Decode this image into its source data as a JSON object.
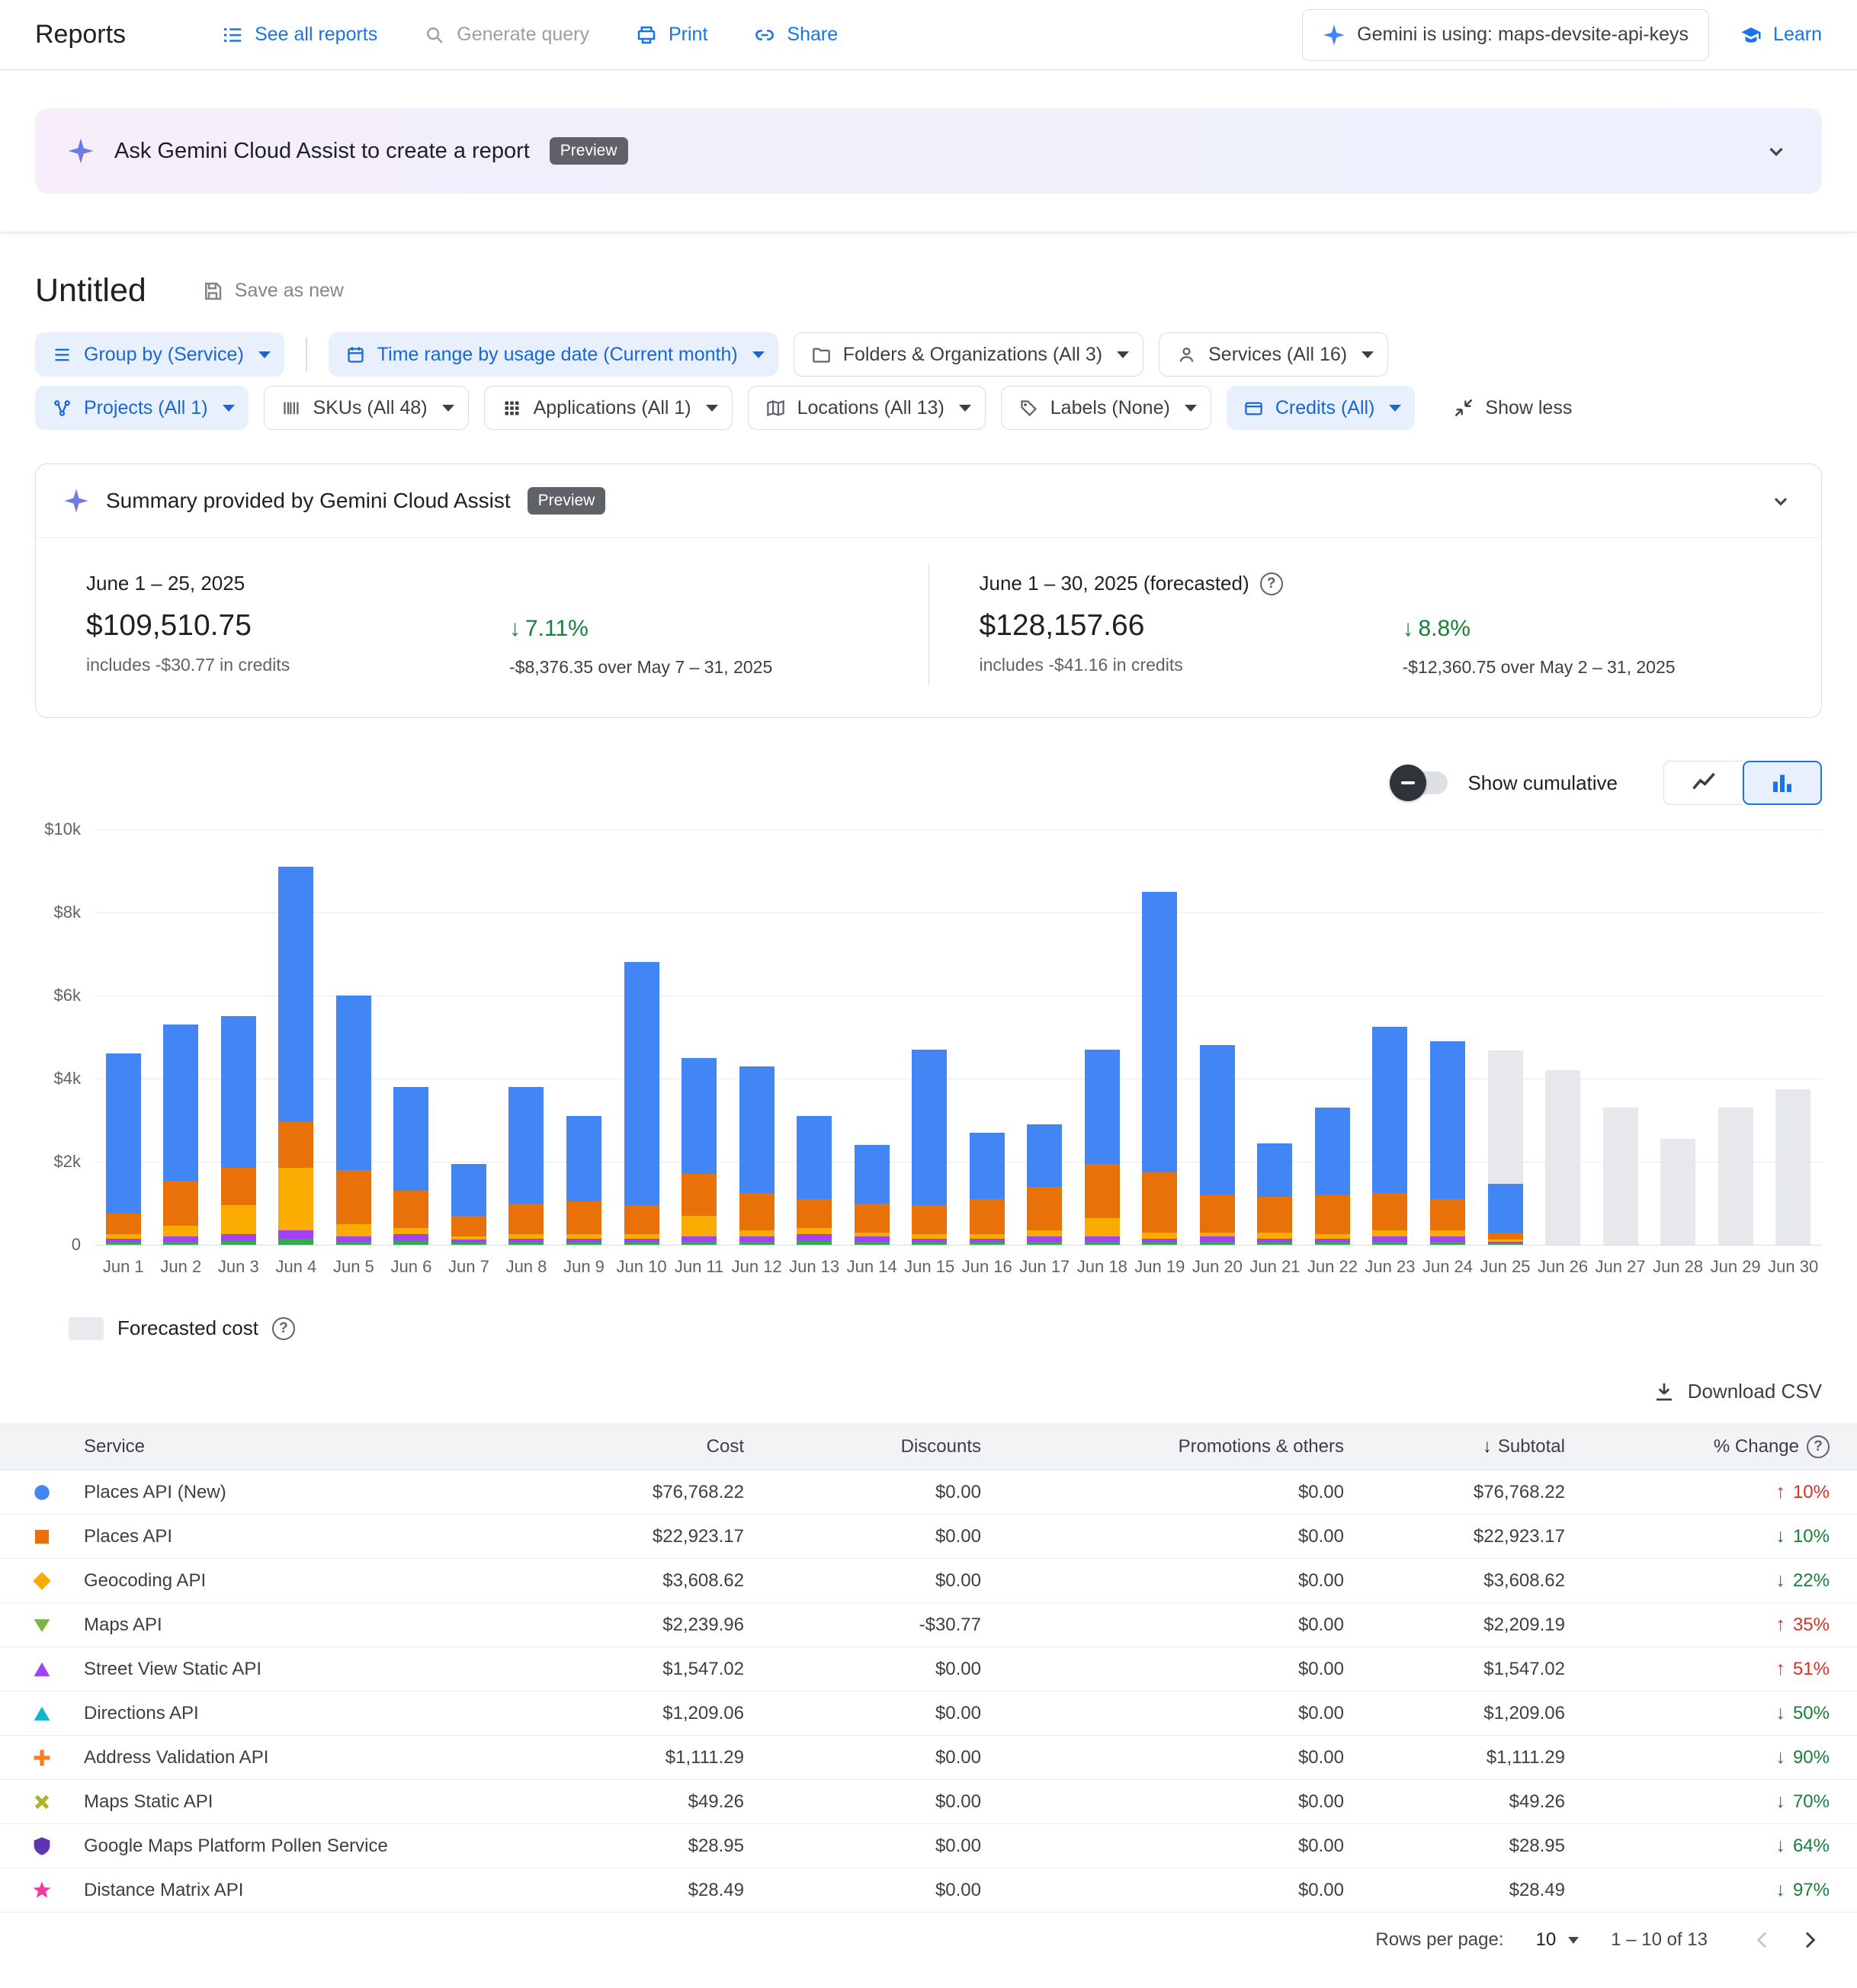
{
  "colors": {
    "accent": "#1a73e8",
    "increase_red": "#d93025",
    "decrease_green": "#188038",
    "forecast_gray": "#e8eaed",
    "chip_blue_bg": "#e8f0fe"
  },
  "header": {
    "title": "Reports",
    "actions": [
      {
        "label": "See all reports"
      },
      {
        "label": "Generate query"
      },
      {
        "label": "Print"
      },
      {
        "label": "Share"
      }
    ],
    "gemini_chip": "Gemini is using: maps-devsite-api-keys",
    "learn": "Learn"
  },
  "banner": {
    "text": "Ask Gemini Cloud Assist to create a report",
    "badge": "Preview"
  },
  "report": {
    "title": "Untitled",
    "save_as_new": "Save as new"
  },
  "filters": [
    {
      "label": "Group by (Service)",
      "style": "blue"
    },
    {
      "label": "Time range by usage date (Current month)",
      "style": "blue"
    },
    {
      "label": "Folders & Organizations (All 3)",
      "style": "white"
    },
    {
      "label": "Services (All 16)",
      "style": "white"
    },
    {
      "label": "Projects (All 1)",
      "style": "blue"
    },
    {
      "label": "SKUs (All 48)",
      "style": "white"
    },
    {
      "label": "Applications (All 1)",
      "style": "white"
    },
    {
      "label": "Locations (All 13)",
      "style": "white"
    },
    {
      "label": "Labels (None)",
      "style": "white"
    },
    {
      "label": "Credits (All)",
      "style": "blue"
    }
  ],
  "show_less_label": "Show less",
  "summary": {
    "title": "Summary provided by Gemini Cloud Assist",
    "badge": "Preview",
    "periods": [
      {
        "label": "June 1 – 25, 2025",
        "amount": "$109,510.75",
        "credits": "includes -$30.77 in credits",
        "pct": "7.11%",
        "delta": "-$8,376.35 over May 7 – 31, 2025"
      },
      {
        "label": "June 1 – 30, 2025 (forecasted)",
        "amount": "$128,157.66",
        "credits": "includes -$41.16 in credits",
        "pct": "8.8%",
        "delta": "-$12,360.75 over May 2 – 31, 2025"
      }
    ]
  },
  "chart_controls": {
    "cumulative_label": "Show cumulative"
  },
  "chart_data": {
    "type": "bar",
    "title": "Daily cost by service, June 2025, stacked bars with forecast",
    "ylim": [
      0,
      10000
    ],
    "yticks": [
      "$10k",
      "$8k",
      "$6k",
      "$4k",
      "$2k",
      "0"
    ],
    "grid": true,
    "legend_position": "below-left",
    "categories": [
      "Jun 1",
      "Jun 2",
      "Jun 3",
      "Jun 4",
      "Jun 5",
      "Jun 6",
      "Jun 7",
      "Jun 8",
      "Jun 9",
      "Jun 10",
      "Jun 11",
      "Jun 12",
      "Jun 13",
      "Jun 14",
      "Jun 15",
      "Jun 16",
      "Jun 17",
      "Jun 18",
      "Jun 19",
      "Jun 20",
      "Jun 21",
      "Jun 22",
      "Jun 23",
      "Jun 24",
      "Jun 25",
      "Jun 26",
      "Jun 27",
      "Jun 28",
      "Jun 29",
      "Jun 30"
    ],
    "series": [
      {
        "name": "Maps API",
        "color": "#34a853",
        "values": [
          60,
          80,
          100,
          140,
          80,
          100,
          48,
          60,
          60,
          60,
          80,
          80,
          100,
          80,
          60,
          60,
          80,
          80,
          60,
          80,
          60,
          60,
          80,
          80,
          20,
          0,
          0,
          0,
          0,
          0
        ]
      },
      {
        "name": "Street View Static API",
        "color": "#a142f4",
        "values": [
          90,
          120,
          150,
          210,
          120,
          150,
          72,
          90,
          90,
          90,
          120,
          120,
          150,
          120,
          90,
          90,
          120,
          120,
          90,
          120,
          90,
          90,
          120,
          120,
          30,
          0,
          0,
          0,
          0,
          0
        ]
      },
      {
        "name": "Geocoding API",
        "color": "#f9ab00",
        "values": [
          100,
          250,
          700,
          1500,
          300,
          150,
          80,
          100,
          100,
          100,
          500,
          150,
          150,
          100,
          100,
          100,
          150,
          450,
          150,
          100,
          150,
          100,
          150,
          150,
          50,
          0,
          0,
          0,
          0,
          0
        ]
      },
      {
        "name": "Places API",
        "color": "#e8710a",
        "values": [
          500,
          1100,
          900,
          1100,
          1300,
          900,
          500,
          750,
          800,
          700,
          1000,
          900,
          700,
          700,
          700,
          850,
          1050,
          1300,
          1450,
          900,
          850,
          950,
          900,
          750,
          150,
          0,
          0,
          0,
          0,
          0
        ]
      },
      {
        "name": "Places API (New)",
        "color": "#4285f4",
        "values": [
          3850,
          3750,
          3650,
          6150,
          4200,
          2500,
          1250,
          2800,
          2050,
          5850,
          2800,
          3050,
          2000,
          1400,
          3750,
          1600,
          1500,
          2750,
          6750,
          3600,
          1300,
          2100,
          4000,
          3800,
          1200,
          0,
          0,
          0,
          0,
          0
        ]
      },
      {
        "name": "Forecasted cost",
        "color": "#e6e8eb",
        "values": [
          0,
          0,
          0,
          0,
          0,
          0,
          0,
          0,
          0,
          0,
          0,
          0,
          0,
          0,
          0,
          0,
          0,
          0,
          0,
          0,
          0,
          0,
          0,
          0,
          3200,
          4200,
          3300,
          2550,
          3300,
          3750
        ]
      }
    ]
  },
  "legend_label": "Forecasted cost",
  "download_label": "Download CSV",
  "table": {
    "columns": [
      "Service",
      "Cost",
      "Discounts",
      "Promotions & others",
      "Subtotal",
      "% Change"
    ],
    "rows": [
      {
        "service": "Places API (New)",
        "marker": "circle",
        "marker_color": "#4285f4",
        "cost": "$76,768.22",
        "discounts": "$0.00",
        "promotions": "$0.00",
        "subtotal": "$76,768.22",
        "change": "10%",
        "direction": "up",
        "change_color": "red"
      },
      {
        "service": "Places API",
        "marker": "square",
        "marker_color": "#e8710a",
        "cost": "$22,923.17",
        "discounts": "$0.00",
        "promotions": "$0.00",
        "subtotal": "$22,923.17",
        "change": "10%",
        "direction": "down",
        "change_color": "green"
      },
      {
        "service": "Geocoding API",
        "marker": "diamond",
        "marker_color": "#f9ab00",
        "cost": "$3,608.62",
        "discounts": "$0.00",
        "promotions": "$0.00",
        "subtotal": "$3,608.62",
        "change": "22%",
        "direction": "down",
        "change_color": "green"
      },
      {
        "service": "Maps API",
        "marker": "triangle-down",
        "marker_color": "#7cb342",
        "cost": "$2,239.96",
        "discounts": "-$30.77",
        "promotions": "$0.00",
        "subtotal": "$2,209.19",
        "change": "35%",
        "direction": "up",
        "change_color": "red"
      },
      {
        "service": "Street View Static API",
        "marker": "triangle-up",
        "marker_color": "#a142f4",
        "cost": "$1,547.02",
        "discounts": "$0.00",
        "promotions": "$0.00",
        "subtotal": "$1,547.02",
        "change": "51%",
        "direction": "up",
        "change_color": "red"
      },
      {
        "service": "Directions API",
        "marker": "triangle-up",
        "marker_color": "#12b5cb",
        "cost": "$1,209.06",
        "discounts": "$0.00",
        "promotions": "$0.00",
        "subtotal": "$1,209.06",
        "change": "50%",
        "direction": "down",
        "change_color": "green"
      },
      {
        "service": "Address Validation API",
        "marker": "plus",
        "marker_color": "#fa7b17",
        "cost": "$1,111.29",
        "discounts": "$0.00",
        "promotions": "$0.00",
        "subtotal": "$1,111.29",
        "change": "90%",
        "direction": "down",
        "change_color": "green"
      },
      {
        "service": "Maps Static API",
        "marker": "x-cross",
        "marker_color": "#afb42b",
        "cost": "$49.26",
        "discounts": "$0.00",
        "promotions": "$0.00",
        "subtotal": "$49.26",
        "change": "70%",
        "direction": "down",
        "change_color": "green"
      },
      {
        "service": "Google Maps Platform Pollen Service",
        "marker": "shield",
        "marker_color": "#5e35b1",
        "cost": "$28.95",
        "discounts": "$0.00",
        "promotions": "$0.00",
        "subtotal": "$28.95",
        "change": "64%",
        "direction": "down",
        "change_color": "green"
      },
      {
        "service": "Distance Matrix API",
        "marker": "star",
        "marker_color": "#f4399e",
        "cost": "$28.49",
        "discounts": "$0.00",
        "promotions": "$0.00",
        "subtotal": "$28.49",
        "change": "97%",
        "direction": "down",
        "change_color": "green"
      }
    ]
  },
  "pagination": {
    "rows_per_page_label": "Rows per page:",
    "rows_per_page": "10",
    "range": "1 – 10 of 13"
  }
}
